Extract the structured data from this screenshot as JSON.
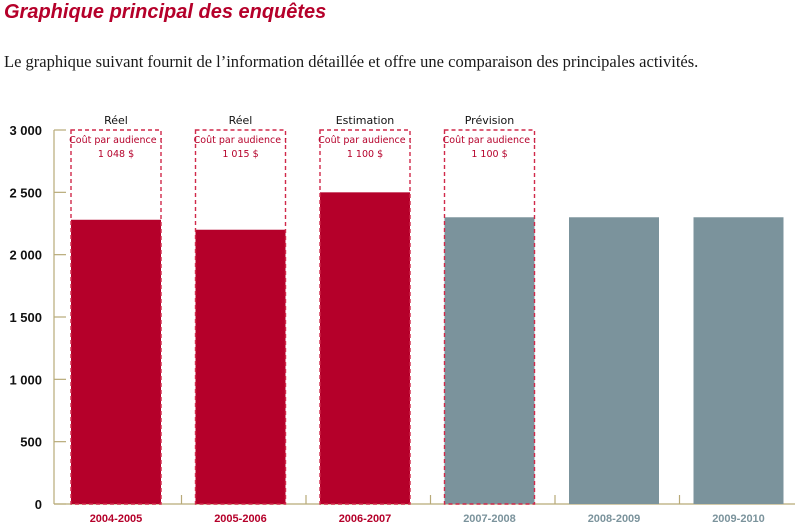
{
  "header": {
    "title": "Graphique principal des enquêtes",
    "intro": "Le graphique suivant fournit de l’information détaillée et offre une comparaison des principales activités."
  },
  "colors": {
    "actual": "#b5002a",
    "forecast": "#7b939c",
    "axis": "#b8aa78",
    "dashed_box": "#d0294a",
    "title": "#b5002a"
  },
  "chart_data": {
    "type": "bar",
    "title": "Graphique principal des enquêtes",
    "xlabel": "",
    "ylabel": "",
    "ylim": [
      0,
      3000
    ],
    "yticks": [
      0,
      500,
      1000,
      1500,
      2000,
      2500,
      3000
    ],
    "ytick_labels": [
      "0",
      "500",
      "1 000",
      "1 500",
      "2 000",
      "2 500",
      "3 000"
    ],
    "grid": false,
    "legend": null,
    "categories": [
      "2004-2005",
      "2005-2006",
      "2006-2007",
      "2007-2008",
      "2008-2009",
      "2009-2010"
    ],
    "values": [
      2280,
      2200,
      2500,
      2300,
      2300,
      2300
    ],
    "bar_types": [
      "actual",
      "actual",
      "actual",
      "forecast",
      "forecast",
      "forecast"
    ],
    "annotations": [
      {
        "category": "2004-2005",
        "status": "Réel",
        "cost_label": "Coût par audience :",
        "cost_value": "1 048 $"
      },
      {
        "category": "2005-2006",
        "status": "Réel",
        "cost_label": "Coût par audience :",
        "cost_value": "1 015 $"
      },
      {
        "category": "2006-2007",
        "status": "Estimation",
        "cost_label": "Coût par audience :",
        "cost_value": "1 100 $"
      },
      {
        "category": "2007-2008",
        "status": "Prévision",
        "cost_label": "Coût par audience :",
        "cost_value": "1 100 $"
      }
    ]
  }
}
